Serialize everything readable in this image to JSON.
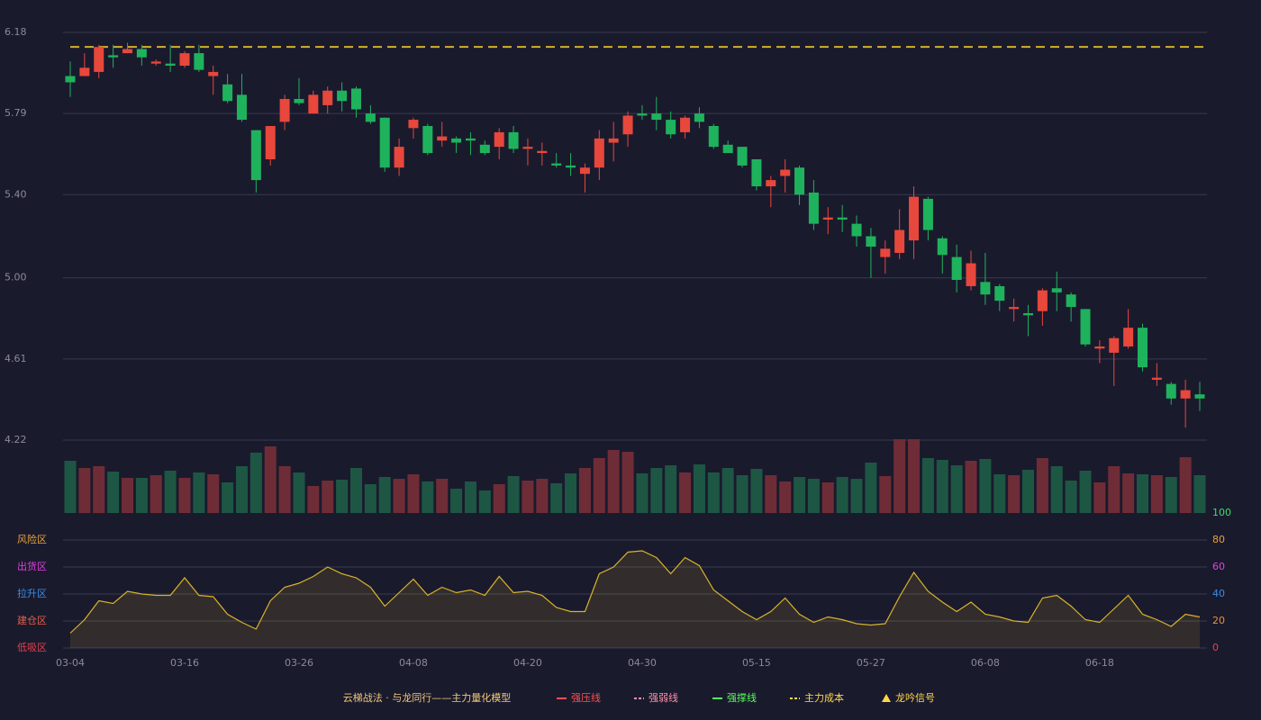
{
  "chart_data": {
    "type": "candlestick",
    "title": "云梯战法 · 与龙同行——主力量化模型",
    "categories": [
      "03-04",
      null,
      null,
      null,
      null,
      null,
      null,
      null,
      "03-16",
      null,
      null,
      null,
      null,
      null,
      null,
      null,
      "03-26",
      null,
      null,
      null,
      null,
      null,
      null,
      null,
      "04-08",
      null,
      null,
      null,
      null,
      null,
      null,
      null,
      "04-20",
      null,
      null,
      null,
      null,
      null,
      null,
      null,
      "04-30",
      null,
      null,
      null,
      null,
      null,
      null,
      null,
      "05-15",
      null,
      null,
      null,
      null,
      null,
      null,
      null,
      "05-27",
      null,
      null,
      null,
      null,
      null,
      null,
      null,
      "06-08",
      null,
      null,
      null,
      null,
      null,
      null,
      null,
      "06-18",
      null,
      null,
      null,
      null,
      null,
      null,
      null
    ],
    "open": [
      5.97,
      5.97,
      5.99,
      6.07,
      6.08,
      6.1,
      6.03,
      6.03,
      6.02,
      6.08,
      5.97,
      5.93,
      5.88,
      5.71,
      5.57,
      5.75,
      5.86,
      5.79,
      5.83,
      5.9,
      5.91,
      5.79,
      5.77,
      5.53,
      5.72,
      5.73,
      5.66,
      5.67,
      5.67,
      5.64,
      5.63,
      5.7,
      5.62,
      5.6,
      5.55,
      5.54,
      5.5,
      5.53,
      5.65,
      5.69,
      5.79,
      5.79,
      5.76,
      5.7,
      5.79,
      5.73,
      5.64,
      5.63,
      5.57,
      5.44,
      5.49,
      5.53,
      5.41,
      5.28,
      5.29,
      5.26,
      5.2,
      5.1,
      5.12,
      5.18,
      5.38,
      5.19,
      5.1,
      4.96,
      4.98,
      4.96,
      4.85,
      4.83,
      4.84,
      4.95,
      4.92,
      4.85,
      4.66,
      4.64,
      4.67,
      4.76,
      4.51,
      4.49,
      4.42,
      4.44
    ],
    "high": [
      6.04,
      6.08,
      6.12,
      6.12,
      6.13,
      6.12,
      6.05,
      6.12,
      6.09,
      6.12,
      6.02,
      5.98,
      5.98,
      5.71,
      5.73,
      5.88,
      5.96,
      5.9,
      5.92,
      5.94,
      5.92,
      5.83,
      5.77,
      5.67,
      5.77,
      5.74,
      5.75,
      5.68,
      5.7,
      5.66,
      5.72,
      5.73,
      5.67,
      5.65,
      5.6,
      5.6,
      5.55,
      5.71,
      5.75,
      5.8,
      5.83,
      5.87,
      5.8,
      5.78,
      5.82,
      5.74,
      5.66,
      5.63,
      5.57,
      5.49,
      5.57,
      5.54,
      5.47,
      5.34,
      5.35,
      5.3,
      5.24,
      5.18,
      5.33,
      5.44,
      5.39,
      5.2,
      5.16,
      5.13,
      5.12,
      4.97,
      4.9,
      4.87,
      4.95,
      5.03,
      4.93,
      4.85,
      4.7,
      4.72,
      4.85,
      4.78,
      4.59,
      4.5,
      4.51,
      4.5
    ],
    "low": [
      5.87,
      5.97,
      5.96,
      6.01,
      6.08,
      6.02,
      6.02,
      5.99,
      6.01,
      5.99,
      5.88,
      5.84,
      5.75,
      5.41,
      5.54,
      5.71,
      5.83,
      5.79,
      5.79,
      5.8,
      5.77,
      5.74,
      5.51,
      5.49,
      5.67,
      5.59,
      5.63,
      5.6,
      5.59,
      5.59,
      5.57,
      5.6,
      5.54,
      5.54,
      5.53,
      5.49,
      5.41,
      5.47,
      5.56,
      5.63,
      5.76,
      5.71,
      5.67,
      5.67,
      5.72,
      5.62,
      5.6,
      5.53,
      5.42,
      5.34,
      5.41,
      5.35,
      5.23,
      5.21,
      5.22,
      5.15,
      5.0,
      5.02,
      5.09,
      5.09,
      5.18,
      5.02,
      4.93,
      4.94,
      4.87,
      4.84,
      4.79,
      4.72,
      4.77,
      4.84,
      4.79,
      4.67,
      4.59,
      4.48,
      4.66,
      4.55,
      4.48,
      4.39,
      4.28,
      4.36
    ],
    "close": [
      5.94,
      6.01,
      6.11,
      6.06,
      6.1,
      6.06,
      6.04,
      6.02,
      6.08,
      6.0,
      5.99,
      5.85,
      5.76,
      5.47,
      5.73,
      5.86,
      5.84,
      5.88,
      5.9,
      5.85,
      5.81,
      5.75,
      5.53,
      5.63,
      5.76,
      5.6,
      5.68,
      5.65,
      5.66,
      5.6,
      5.7,
      5.62,
      5.63,
      5.61,
      5.54,
      5.53,
      5.53,
      5.67,
      5.67,
      5.78,
      5.78,
      5.76,
      5.69,
      5.77,
      5.75,
      5.63,
      5.6,
      5.54,
      5.44,
      5.47,
      5.52,
      5.4,
      5.26,
      5.29,
      5.28,
      5.2,
      5.15,
      5.14,
      5.23,
      5.39,
      5.23,
      5.11,
      4.99,
      5.07,
      4.92,
      4.89,
      4.86,
      4.82,
      4.94,
      4.93,
      4.86,
      4.68,
      4.67,
      4.71,
      4.76,
      4.57,
      4.52,
      4.42,
      4.46,
      4.42
    ],
    "up_color": "#e8473b",
    "down_color": "#1fb25d",
    "ylim": [
      4.22,
      6.18
    ],
    "yticks": [
      6.18,
      5.79,
      {
        "value": 5.4,
        "label": "5.40"
      },
      {
        "value": 5,
        "label": "5.00"
      },
      4.61,
      4.22
    ],
    "grid": true,
    "cost_line": {
      "value": 6.11,
      "color": "#d4b02a"
    },
    "volume": {
      "values": [
        58,
        50,
        52,
        46,
        39,
        39,
        42,
        47,
        39,
        45,
        43,
        34,
        52,
        67,
        74,
        52,
        45,
        30,
        36,
        37,
        50,
        32,
        40,
        38,
        43,
        35,
        38,
        27,
        35,
        25,
        32,
        41,
        36,
        38,
        33,
        44,
        50,
        61,
        70,
        68,
        44,
        50,
        53,
        45,
        54,
        45,
        50,
        42,
        49,
        42,
        35,
        40,
        38,
        34,
        40,
        38,
        56,
        41,
        82,
        82,
        61,
        59,
        53,
        58,
        60,
        43,
        42,
        48,
        61,
        52,
        36,
        47,
        34,
        52,
        44,
        43,
        42,
        40,
        62,
        42
      ],
      "vlim": [
        0,
        82
      ],
      "up_color": "#6e2d36",
      "down_color": "#1e5644"
    },
    "indicator": {
      "values": [
        11,
        21,
        35,
        33,
        42,
        40,
        39,
        39,
        52,
        39,
        38,
        25,
        19,
        14,
        35,
        45,
        48,
        53,
        60,
        55,
        52,
        45,
        31,
        41,
        51,
        39,
        45,
        41,
        43,
        39,
        53,
        41,
        42,
        39,
        30,
        27,
        27,
        55,
        60,
        71,
        72,
        67,
        55,
        67,
        61,
        43,
        35,
        27,
        21,
        27,
        37,
        25,
        19,
        23,
        21,
        18,
        17,
        18,
        38,
        56,
        42,
        34,
        27,
        34,
        25,
        23,
        20,
        19,
        37,
        39,
        31,
        21,
        19,
        29,
        39,
        25,
        21,
        16,
        25,
        23
      ],
      "color": "#d8b32a",
      "ylim": [
        0,
        100
      ],
      "yticks": [
        0,
        20,
        40,
        60,
        80,
        100
      ],
      "tick_colors": [
        "#e8404a",
        "#e8923a",
        "#3a8ee8",
        "#e040e0",
        "#e8a23a",
        "#3ddc6e"
      ],
      "zones": [
        {
          "label": "风险区",
          "value": 80,
          "color": "#e8a23a"
        },
        {
          "label": "出货区",
          "value": 60,
          "color": "#e040e0"
        },
        {
          "label": "拉升区",
          "value": 40,
          "color": "#3a8ee8"
        },
        {
          "label": "建仓区",
          "value": 20,
          "color": "#e8604a"
        },
        {
          "label": "低吸区",
          "value": 0,
          "color": "#e8404a"
        }
      ]
    },
    "legend": [
      {
        "name": "强压线",
        "color": "#ff5050",
        "style": "solid"
      },
      {
        "name": "强弱线",
        "color": "#ff8fa8",
        "style": "dashed"
      },
      {
        "name": "强撑线",
        "color": "#55ff55",
        "style": "solid"
      },
      {
        "name": "主力成本",
        "color": "#ffd84a",
        "style": "dashed"
      },
      {
        "name": "龙吟信号",
        "color": "#ffd84a",
        "style": "triangle"
      }
    ],
    "title_color": "#f0c878"
  }
}
